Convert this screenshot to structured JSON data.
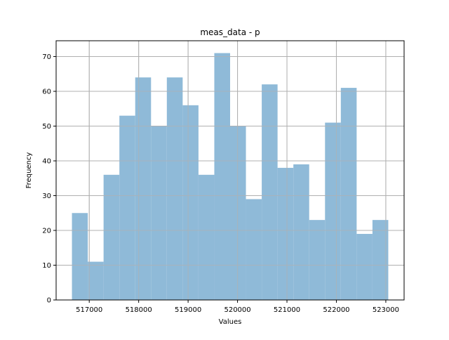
{
  "chart_data": {
    "type": "bar",
    "title": "meas_data - p",
    "xlabel": "Values",
    "ylabel": "Frequency",
    "bin_edges": [
      516650,
      516970,
      517290,
      517610,
      517930,
      518250,
      518570,
      518890,
      519210,
      519530,
      519850,
      520170,
      520490,
      520810,
      521130,
      521450,
      521770,
      522090,
      522410,
      522730,
      523050
    ],
    "values": [
      25,
      11,
      36,
      53,
      64,
      50,
      64,
      56,
      36,
      71,
      50,
      29,
      62,
      38,
      39,
      23,
      51,
      61,
      19,
      23
    ],
    "xlim": [
      516330,
      523370
    ],
    "ylim": [
      0,
      74.55
    ],
    "xticks": [
      517000,
      518000,
      519000,
      520000,
      521000,
      522000,
      523000
    ],
    "yticks": [
      0,
      10,
      20,
      30,
      40,
      50,
      60,
      70
    ],
    "grid": true,
    "bar_color": "#8fbad8"
  }
}
